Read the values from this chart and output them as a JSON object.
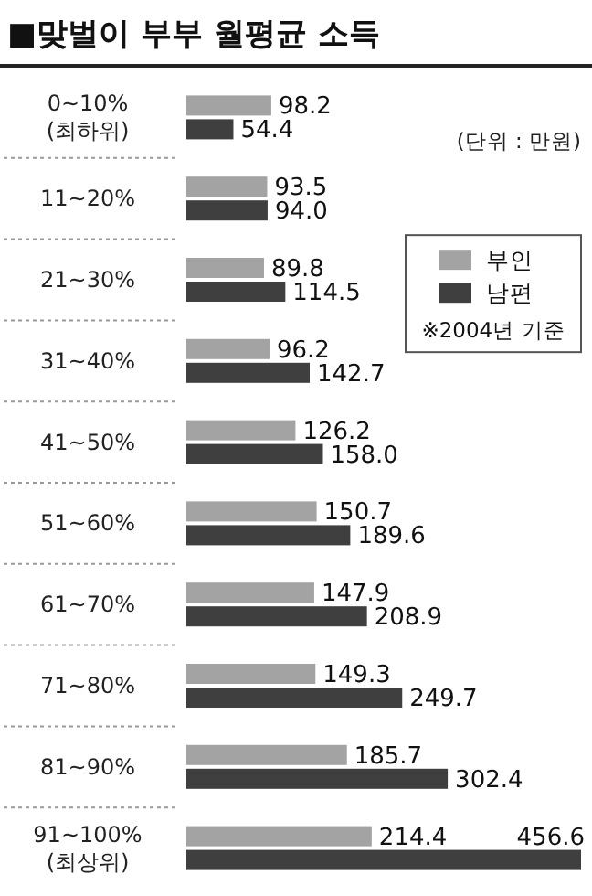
{
  "chart_data": {
    "type": "bar",
    "orientation": "horizontal",
    "title": "■맞벌이 부부 월평균 소득",
    "categories": [
      "0~10%\n(최하위)",
      "11~20%",
      "21~30%",
      "31~40%",
      "41~50%",
      "51~60%",
      "61~70%",
      "71~80%",
      "81~90%",
      "91~100%\n(최상위)"
    ],
    "series": [
      {
        "name": "부인",
        "color": "#a3a3a3",
        "values": [
          98.2,
          93.5,
          89.8,
          96.2,
          126.2,
          150.7,
          147.9,
          149.3,
          185.7,
          214.4
        ],
        "value_labels": [
          "98.2",
          "93.5",
          "89.8",
          "96.2",
          "126.2",
          "150.7",
          "147.9",
          "149.3",
          "185.7",
          "214.4"
        ]
      },
      {
        "name": "남편",
        "color": "#3f3f3f",
        "values": [
          54.4,
          94,
          114.5,
          142.7,
          158,
          189.6,
          208.9,
          249.7,
          302.4,
          456.6
        ],
        "value_labels": [
          "54.4",
          "94.0",
          "114.5",
          "142.7",
          "158.0",
          "189.6",
          "208.9",
          "249.7",
          "302.4",
          "456.6"
        ]
      }
    ],
    "legend": "top right",
    "annotations": [
      "(단위 : 만원)",
      "※2004년 기준"
    ]
  }
}
